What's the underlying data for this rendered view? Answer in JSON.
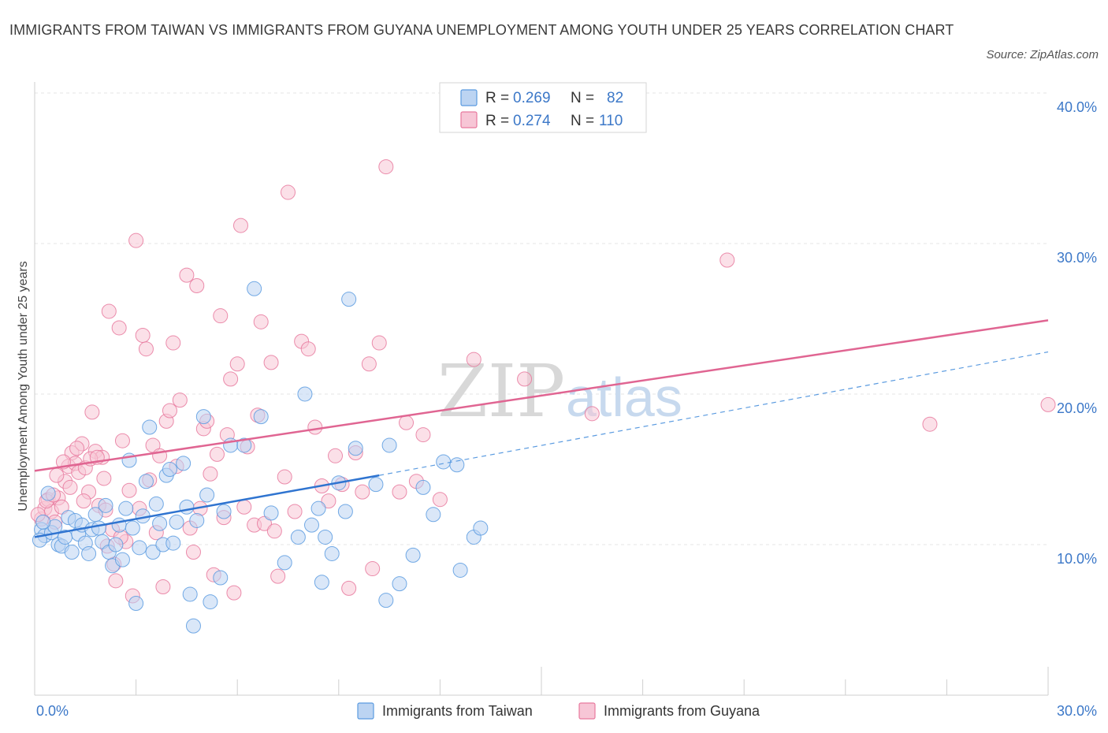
{
  "title": "IMMIGRANTS FROM TAIWAN VS IMMIGRANTS FROM GUYANA UNEMPLOYMENT AMONG YOUTH UNDER 25 YEARS CORRELATION CHART",
  "source": "Source: ZipAtlas.com",
  "watermark": {
    "zip": "ZIP",
    "atlas": "atlas"
  },
  "legend": {
    "rows": [
      {
        "r_label": "R =",
        "r_value": "0.269",
        "n_label": "N =",
        "n_value": "82"
      },
      {
        "r_label": "R =",
        "r_value": "0.274",
        "n_label": "N =",
        "n_value": "110"
      }
    ]
  },
  "colors": {
    "taiwan": "#5b9be0",
    "taiwan_fill": "#bcd4f2",
    "guyana": "#e8799e",
    "guyana_fill": "#f7c6d6",
    "axis_text": "#3c78c8"
  },
  "chart_data": {
    "type": "scatter",
    "title": "IMMIGRANTS FROM TAIWAN VS IMMIGRANTS FROM GUYANA UNEMPLOYMENT AMONG YOUTH UNDER 25 YEARS CORRELATION CHART",
    "xlabel": "",
    "ylabel": "Unemployment Among Youth under 25 years",
    "xlim": [
      0,
      30
    ],
    "ylim": [
      0,
      40
    ],
    "x_tick_labels": [
      "0.0%",
      "30.0%"
    ],
    "y_ticks": [
      10,
      20,
      30,
      40
    ],
    "y_tick_labels": [
      "10.0%",
      "20.0%",
      "30.0%",
      "40.0%"
    ],
    "grid": true,
    "legend_position": "top-center",
    "series": [
      {
        "name": "Immigrants from Taiwan",
        "color": "#5b9be0",
        "trend": {
          "x": [
            0,
            10.2
          ],
          "y": [
            10.5,
            14.6
          ],
          "dashed_extension_to": [
            30,
            22.8
          ]
        },
        "points": [
          [
            0.2,
            11.0
          ],
          [
            0.3,
            10.6
          ],
          [
            0.4,
            13.4
          ],
          [
            0.5,
            10.8
          ],
          [
            0.6,
            11.2
          ],
          [
            0.7,
            10.0
          ],
          [
            0.8,
            9.9
          ],
          [
            0.9,
            10.5
          ],
          [
            1.0,
            11.8
          ],
          [
            1.1,
            9.5
          ],
          [
            1.2,
            11.6
          ],
          [
            1.3,
            10.7
          ],
          [
            1.4,
            11.3
          ],
          [
            1.5,
            10.1
          ],
          [
            1.6,
            9.4
          ],
          [
            1.7,
            11.0
          ],
          [
            1.8,
            12.0
          ],
          [
            1.9,
            11.1
          ],
          [
            2.0,
            10.2
          ],
          [
            2.1,
            12.6
          ],
          [
            2.2,
            9.5
          ],
          [
            2.3,
            8.6
          ],
          [
            2.4,
            10.0
          ],
          [
            2.5,
            11.3
          ],
          [
            2.6,
            9.0
          ],
          [
            2.7,
            12.4
          ],
          [
            2.8,
            15.6
          ],
          [
            2.9,
            11.1
          ],
          [
            3.0,
            6.1
          ],
          [
            3.1,
            9.8
          ],
          [
            3.2,
            11.9
          ],
          [
            3.3,
            14.2
          ],
          [
            3.4,
            17.8
          ],
          [
            3.5,
            9.5
          ],
          [
            3.6,
            12.7
          ],
          [
            3.7,
            11.4
          ],
          [
            3.8,
            10.0
          ],
          [
            3.9,
            14.6
          ],
          [
            4.0,
            15.0
          ],
          [
            4.1,
            10.1
          ],
          [
            4.2,
            11.5
          ],
          [
            4.4,
            15.4
          ],
          [
            4.5,
            12.5
          ],
          [
            4.6,
            6.7
          ],
          [
            4.7,
            4.6
          ],
          [
            4.8,
            11.6
          ],
          [
            5.0,
            18.5
          ],
          [
            5.1,
            13.3
          ],
          [
            5.2,
            6.2
          ],
          [
            5.5,
            7.8
          ],
          [
            5.6,
            12.2
          ],
          [
            5.8,
            16.6
          ],
          [
            6.2,
            16.6
          ],
          [
            6.5,
            27.0
          ],
          [
            6.7,
            18.5
          ],
          [
            7.0,
            12.1
          ],
          [
            7.4,
            8.8
          ],
          [
            7.8,
            10.5
          ],
          [
            8.0,
            20.0
          ],
          [
            8.2,
            11.3
          ],
          [
            8.4,
            12.4
          ],
          [
            8.5,
            7.5
          ],
          [
            8.6,
            10.5
          ],
          [
            8.8,
            9.4
          ],
          [
            9.0,
            14.1
          ],
          [
            9.2,
            12.2
          ],
          [
            9.3,
            26.3
          ],
          [
            9.5,
            16.4
          ],
          [
            10.1,
            14.0
          ],
          [
            10.4,
            6.3
          ],
          [
            10.5,
            16.6
          ],
          [
            10.8,
            7.4
          ],
          [
            11.2,
            9.3
          ],
          [
            11.5,
            13.8
          ],
          [
            11.8,
            12.0
          ],
          [
            12.1,
            15.5
          ],
          [
            12.5,
            15.3
          ],
          [
            12.6,
            8.3
          ],
          [
            13.0,
            10.5
          ],
          [
            13.2,
            11.1
          ],
          [
            0.15,
            10.3
          ],
          [
            0.25,
            11.5
          ]
        ]
      },
      {
        "name": "Immigrants from Guyana",
        "color": "#e8799e",
        "trend": {
          "x": [
            0,
            30
          ],
          "y": [
            14.9,
            24.9
          ]
        },
        "points": [
          [
            0.2,
            11.7
          ],
          [
            0.3,
            12.4
          ],
          [
            0.4,
            13.0
          ],
          [
            0.5,
            12.2
          ],
          [
            0.6,
            11.5
          ],
          [
            0.7,
            13.1
          ],
          [
            0.8,
            12.5
          ],
          [
            0.9,
            14.2
          ],
          [
            1.0,
            15.2
          ],
          [
            1.1,
            16.1
          ],
          [
            1.2,
            15.4
          ],
          [
            1.3,
            14.8
          ],
          [
            1.4,
            16.7
          ],
          [
            1.5,
            15.1
          ],
          [
            1.6,
            13.5
          ],
          [
            1.7,
            18.8
          ],
          [
            1.8,
            16.2
          ],
          [
            1.9,
            12.6
          ],
          [
            2.0,
            15.8
          ],
          [
            2.1,
            12.3
          ],
          [
            2.2,
            25.5
          ],
          [
            2.3,
            11.0
          ],
          [
            2.4,
            7.6
          ],
          [
            2.5,
            24.4
          ],
          [
            2.6,
            16.9
          ],
          [
            2.7,
            10.2
          ],
          [
            2.8,
            13.6
          ],
          [
            2.9,
            6.6
          ],
          [
            3.0,
            30.2
          ],
          [
            3.1,
            12.4
          ],
          [
            3.2,
            23.9
          ],
          [
            3.3,
            23.0
          ],
          [
            3.4,
            14.3
          ],
          [
            3.5,
            16.6
          ],
          [
            3.6,
            10.8
          ],
          [
            3.7,
            15.9
          ],
          [
            3.8,
            7.2
          ],
          [
            3.9,
            18.2
          ],
          [
            4.0,
            18.9
          ],
          [
            4.1,
            23.4
          ],
          [
            4.2,
            15.2
          ],
          [
            4.3,
            19.6
          ],
          [
            4.5,
            27.9
          ],
          [
            4.6,
            11.1
          ],
          [
            4.7,
            9.5
          ],
          [
            4.8,
            27.2
          ],
          [
            4.9,
            12.4
          ],
          [
            5.0,
            17.7
          ],
          [
            5.1,
            18.2
          ],
          [
            5.2,
            14.7
          ],
          [
            5.3,
            8.0
          ],
          [
            5.4,
            16.0
          ],
          [
            5.5,
            25.2
          ],
          [
            5.6,
            11.8
          ],
          [
            5.7,
            17.3
          ],
          [
            5.8,
            21.0
          ],
          [
            5.9,
            6.8
          ],
          [
            6.0,
            22.0
          ],
          [
            6.1,
            31.2
          ],
          [
            6.2,
            12.5
          ],
          [
            6.3,
            16.5
          ],
          [
            6.5,
            11.3
          ],
          [
            6.6,
            18.6
          ],
          [
            6.7,
            24.8
          ],
          [
            6.8,
            11.4
          ],
          [
            7.0,
            22.1
          ],
          [
            7.1,
            10.9
          ],
          [
            7.2,
            7.9
          ],
          [
            7.4,
            14.5
          ],
          [
            7.5,
            33.4
          ],
          [
            7.7,
            12.2
          ],
          [
            7.9,
            23.5
          ],
          [
            8.1,
            23.0
          ],
          [
            8.3,
            17.8
          ],
          [
            8.5,
            13.9
          ],
          [
            8.7,
            12.9
          ],
          [
            8.9,
            15.9
          ],
          [
            9.1,
            14.0
          ],
          [
            9.3,
            7.1
          ],
          [
            9.5,
            16.1
          ],
          [
            9.7,
            13.5
          ],
          [
            9.9,
            22.0
          ],
          [
            10.0,
            8.4
          ],
          [
            10.2,
            23.4
          ],
          [
            10.4,
            35.1
          ],
          [
            10.8,
            13.5
          ],
          [
            11.0,
            18.1
          ],
          [
            11.3,
            14.2
          ],
          [
            11.5,
            17.3
          ],
          [
            12.0,
            13.0
          ],
          [
            13.0,
            22.3
          ],
          [
            14.5,
            21.0
          ],
          [
            16.5,
            18.7
          ],
          [
            20.5,
            28.9
          ],
          [
            26.5,
            18.0
          ],
          [
            30.0,
            19.3
          ],
          [
            0.1,
            12.0
          ],
          [
            0.35,
            12.9
          ],
          [
            0.55,
            13.3
          ],
          [
            0.65,
            14.6
          ],
          [
            0.85,
            15.5
          ],
          [
            1.05,
            13.8
          ],
          [
            1.25,
            16.4
          ],
          [
            1.45,
            12.9
          ],
          [
            1.65,
            15.7
          ],
          [
            1.85,
            15.8
          ],
          [
            2.05,
            14.4
          ],
          [
            2.15,
            9.9
          ],
          [
            2.35,
            8.7
          ],
          [
            2.55,
            10.5
          ]
        ]
      }
    ]
  },
  "bottom_legend": [
    "Immigrants from Taiwan",
    "Immigrants from Guyana"
  ]
}
